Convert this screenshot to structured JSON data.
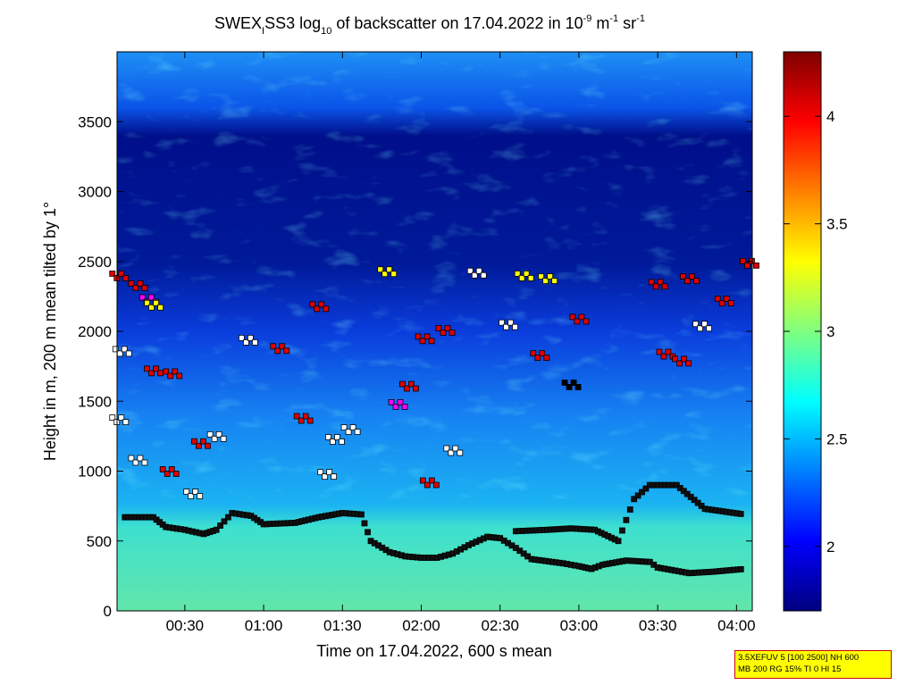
{
  "chart_data": {
    "type": "heatmap",
    "title_parts": {
      "a": "SWEX",
      "a_sub": "I",
      "b": "SS3 log",
      "b_sub": "10",
      "c": " of backscatter on 17.04.2022 in 10",
      "c_sup": "-9",
      "d": " m",
      "d_sup": "-1",
      "e": " sr",
      "e_sup": "-1"
    },
    "xlabel": "Time on 17.04.2022, 600 s mean",
    "ylabel": "Height in m, 200 m mean tilted by 1°",
    "x_unit": "hours",
    "xlim": [
      0.07,
      4.1
    ],
    "ylim": [
      0,
      4000
    ],
    "x_ticks": [
      0.5,
      1.0,
      1.5,
      2.0,
      2.5,
      3.0,
      3.5,
      4.0
    ],
    "x_tick_labels": [
      "00:30",
      "01:00",
      "01:30",
      "02:00",
      "02:30",
      "03:00",
      "03:30",
      "04:00"
    ],
    "y_ticks": [
      0,
      500,
      1000,
      1500,
      2000,
      2500,
      3000,
      3500
    ],
    "y_tick_labels": [
      "0",
      "500",
      "1000",
      "1500",
      "2000",
      "2500",
      "3000",
      "3500"
    ],
    "colorbar": {
      "min": 1.7,
      "max": 4.3,
      "ticks": [
        2,
        2.5,
        3,
        3.5,
        4
      ],
      "tick_labels": [
        "2",
        "2.5",
        "3",
        "3.5",
        "4"
      ],
      "colormap": "jet"
    },
    "backscatter_profile_bands": [
      {
        "from_m": 0,
        "to_m": 600,
        "value": 2.75
      },
      {
        "from_m": 600,
        "to_m": 1000,
        "value": 2.4
      },
      {
        "from_m": 1000,
        "to_m": 1500,
        "value": 2.25
      },
      {
        "from_m": 1500,
        "to_m": 2000,
        "value": 2.05
      },
      {
        "from_m": 2000,
        "to_m": 3500,
        "value": 1.75
      },
      {
        "from_m": 3500,
        "to_m": 4000,
        "value": 2.25
      }
    ],
    "mixing_layer_series": [
      {
        "marker": "black-square",
        "points": [
          [
            0.12,
            670
          ],
          [
            0.3,
            670
          ],
          [
            0.38,
            600
          ],
          [
            0.5,
            580
          ],
          [
            0.62,
            550
          ],
          [
            0.7,
            580
          ],
          [
            0.8,
            700
          ],
          [
            0.92,
            680
          ],
          [
            1.0,
            620
          ],
          [
            1.2,
            630
          ],
          [
            1.35,
            670
          ],
          [
            1.5,
            700
          ],
          [
            1.62,
            690
          ],
          [
            1.68,
            500
          ],
          [
            1.8,
            420
          ],
          [
            1.9,
            390
          ],
          [
            2.0,
            380
          ],
          [
            2.1,
            380
          ],
          [
            2.2,
            410
          ],
          [
            2.3,
            470
          ],
          [
            2.42,
            530
          ],
          [
            2.5,
            520
          ],
          [
            2.6,
            450
          ],
          [
            2.7,
            370
          ],
          [
            2.9,
            340
          ],
          [
            3.0,
            320
          ],
          [
            3.08,
            300
          ],
          [
            3.15,
            330
          ],
          [
            3.3,
            360
          ],
          [
            3.45,
            350
          ],
          [
            3.5,
            310
          ],
          [
            3.7,
            270
          ],
          [
            3.85,
            280
          ],
          [
            4.05,
            300
          ]
        ]
      },
      {
        "marker": "black-square",
        "points": [
          [
            2.6,
            570
          ],
          [
            2.8,
            580
          ],
          [
            2.95,
            590
          ],
          [
            3.1,
            580
          ],
          [
            3.25,
            500
          ],
          [
            3.35,
            800
          ],
          [
            3.45,
            900
          ],
          [
            3.62,
            900
          ],
          [
            3.8,
            730
          ],
          [
            4.05,
            690
          ]
        ]
      }
    ],
    "cloud_base_points": [
      {
        "x": 0.08,
        "y": 2400,
        "color": "red"
      },
      {
        "x": 0.2,
        "y": 2330,
        "color": "red"
      },
      {
        "x": 0.27,
        "y": 2230,
        "color": "magenta"
      },
      {
        "x": 0.3,
        "y": 2190,
        "color": "yellow"
      },
      {
        "x": 0.1,
        "y": 1860,
        "color": "white"
      },
      {
        "x": 0.3,
        "y": 1720,
        "color": "red"
      },
      {
        "x": 0.42,
        "y": 1700,
        "color": "red"
      },
      {
        "x": 0.08,
        "y": 1370,
        "color": "white"
      },
      {
        "x": 0.2,
        "y": 1080,
        "color": "white"
      },
      {
        "x": 0.4,
        "y": 1000,
        "color": "red"
      },
      {
        "x": 0.6,
        "y": 1200,
        "color": "red"
      },
      {
        "x": 0.7,
        "y": 1250,
        "color": "white"
      },
      {
        "x": 0.55,
        "y": 840,
        "color": "white"
      },
      {
        "x": 0.9,
        "y": 1940,
        "color": "white"
      },
      {
        "x": 1.1,
        "y": 1880,
        "color": "red"
      },
      {
        "x": 1.35,
        "y": 2180,
        "color": "red"
      },
      {
        "x": 1.25,
        "y": 1380,
        "color": "red"
      },
      {
        "x": 1.45,
        "y": 1230,
        "color": "white"
      },
      {
        "x": 1.55,
        "y": 1300,
        "color": "white"
      },
      {
        "x": 1.4,
        "y": 980,
        "color": "white"
      },
      {
        "x": 1.78,
        "y": 2430,
        "color": "yellow"
      },
      {
        "x": 1.85,
        "y": 1480,
        "color": "magenta"
      },
      {
        "x": 1.92,
        "y": 1610,
        "color": "red"
      },
      {
        "x": 2.02,
        "y": 1950,
        "color": "red"
      },
      {
        "x": 2.15,
        "y": 2010,
        "color": "red"
      },
      {
        "x": 2.05,
        "y": 920,
        "color": "red"
      },
      {
        "x": 2.2,
        "y": 1150,
        "color": "white"
      },
      {
        "x": 2.35,
        "y": 2420,
        "color": "white"
      },
      {
        "x": 2.55,
        "y": 2050,
        "color": "white"
      },
      {
        "x": 2.65,
        "y": 2400,
        "color": "yellow"
      },
      {
        "x": 2.8,
        "y": 2380,
        "color": "yellow"
      },
      {
        "x": 2.75,
        "y": 1830,
        "color": "red"
      },
      {
        "x": 2.95,
        "y": 1620,
        "color": "black"
      },
      {
        "x": 3.0,
        "y": 2090,
        "color": "red"
      },
      {
        "x": 3.5,
        "y": 2340,
        "color": "red"
      },
      {
        "x": 3.7,
        "y": 2380,
        "color": "red"
      },
      {
        "x": 3.92,
        "y": 2220,
        "color": "red"
      },
      {
        "x": 4.08,
        "y": 2490,
        "color": "red"
      },
      {
        "x": 3.55,
        "y": 1840,
        "color": "red"
      },
      {
        "x": 3.65,
        "y": 1790,
        "color": "red"
      },
      {
        "x": 3.78,
        "y": 2040,
        "color": "white"
      }
    ]
  },
  "info_box": {
    "line1": "3.5XEFUV 5 [100 2500] NH 600",
    "line2": "MB 200 RG 15% TI 0 HI 15"
  }
}
